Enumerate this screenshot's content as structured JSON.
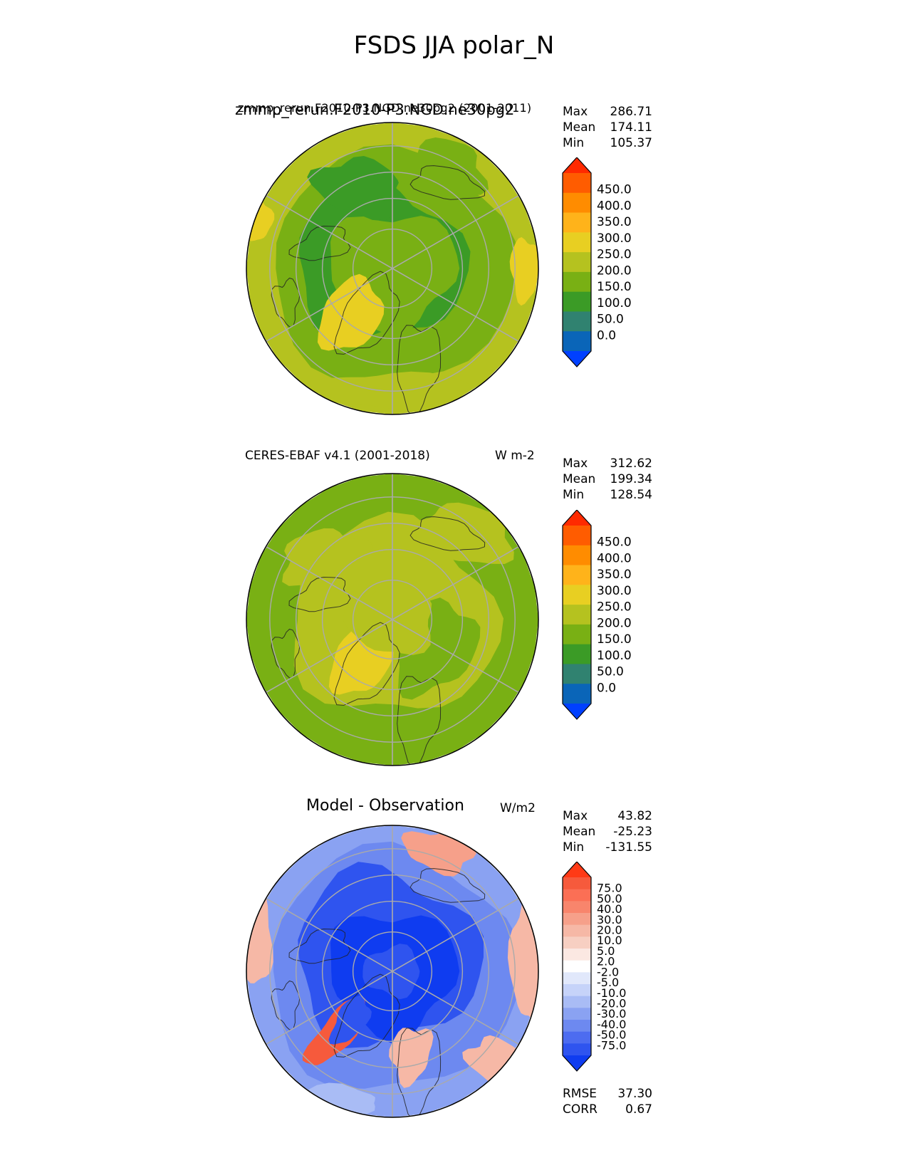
{
  "figure": {
    "title": "FSDS JJA polar_N"
  },
  "chart_data": [
    {
      "type": "heatmap",
      "projection": "north-polar-stereographic",
      "title_main": "zmmp_rerun.F2010-P3.NGD.ne30pg2",
      "title_overlap": "zmmp_rerun.F2010-P3.NGD.ne30pg2 (2001-2011)",
      "stats": [
        {
          "label": "Max",
          "value": "286.71"
        },
        {
          "label": "Mean",
          "value": "174.11"
        },
        {
          "label": "Min",
          "value": "105.37"
        }
      ],
      "colorbar_ticks": [
        "450.0",
        "400.0",
        "350.0",
        "300.0",
        "250.0",
        "200.0",
        "150.0",
        "100.0",
        "50.0",
        "0.0"
      ],
      "colorbar_colors": [
        "#ff2a00",
        "#ff5c00",
        "#ff8c00",
        "#ffb31a",
        "#e8cf22",
        "#b5c21f",
        "#79b014",
        "#3b9b26",
        "#308270",
        "#0a65b8",
        "#0040ff"
      ],
      "extend": "both",
      "dominant": "green 150–200 W m-2; 250–300 over Greenland and low latitudes"
    },
    {
      "type": "heatmap",
      "projection": "north-polar-stereographic",
      "title_left": "CERES-EBAF v4.1 (2001-2018)",
      "title_right": "W m-2",
      "stats": [
        {
          "label": "Max",
          "value": "312.62"
        },
        {
          "label": "Mean",
          "value": "199.34"
        },
        {
          "label": "Min",
          "value": "128.54"
        }
      ],
      "colorbar_ticks": [
        "450.0",
        "400.0",
        "350.0",
        "300.0",
        "250.0",
        "200.0",
        "150.0",
        "100.0",
        "50.0",
        "0.0"
      ],
      "colorbar_colors": [
        "#ff2a00",
        "#ff5c00",
        "#ff8c00",
        "#ffb31a",
        "#e8cf22",
        "#b5c21f",
        "#79b014",
        "#3b9b26",
        "#308270",
        "#0a65b8",
        "#0040ff"
      ],
      "extend": "both",
      "dominant": "200–250 W m-2 over central Arctic, 250–300 over Greenland"
    },
    {
      "type": "heatmap",
      "projection": "north-polar-stereographic",
      "title_left": "Model - Observation",
      "title_right": "W/m2",
      "stats": [
        {
          "label": "Max",
          "value": "43.82"
        },
        {
          "label": "Mean",
          "value": "-25.23"
        },
        {
          "label": "Min",
          "value": "-131.55"
        }
      ],
      "extra_stats": [
        {
          "label": "RMSE",
          "value": "37.30"
        },
        {
          "label": "CORR",
          "value": "0.67"
        }
      ],
      "colorbar_ticks": [
        "75.0",
        "50.0",
        "40.0",
        "30.0",
        "20.0",
        "10.0",
        "5.0",
        "2.0",
        "-2.0",
        "-5.0",
        "-10.0",
        "-20.0",
        "-30.0",
        "-40.0",
        "-50.0",
        "-75.0"
      ],
      "colorbar_colors": [
        "#ff3a16",
        "#f65a3c",
        "#fb6f55",
        "#f8856c",
        "#f6a08a",
        "#f6b8a6",
        "#f7cfc2",
        "#fbe8e2",
        "#ffffff",
        "#e1e8fb",
        "#c6d3f9",
        "#a9bcf5",
        "#8aa2f2",
        "#6d89f0",
        "#4d6cf0",
        "#2f54ef",
        "#0f3cf0"
      ],
      "extend": "both",
      "dominant": "negative bias (blue) over central Arctic; positive (red) over Greenland margins, low latitudes"
    }
  ]
}
